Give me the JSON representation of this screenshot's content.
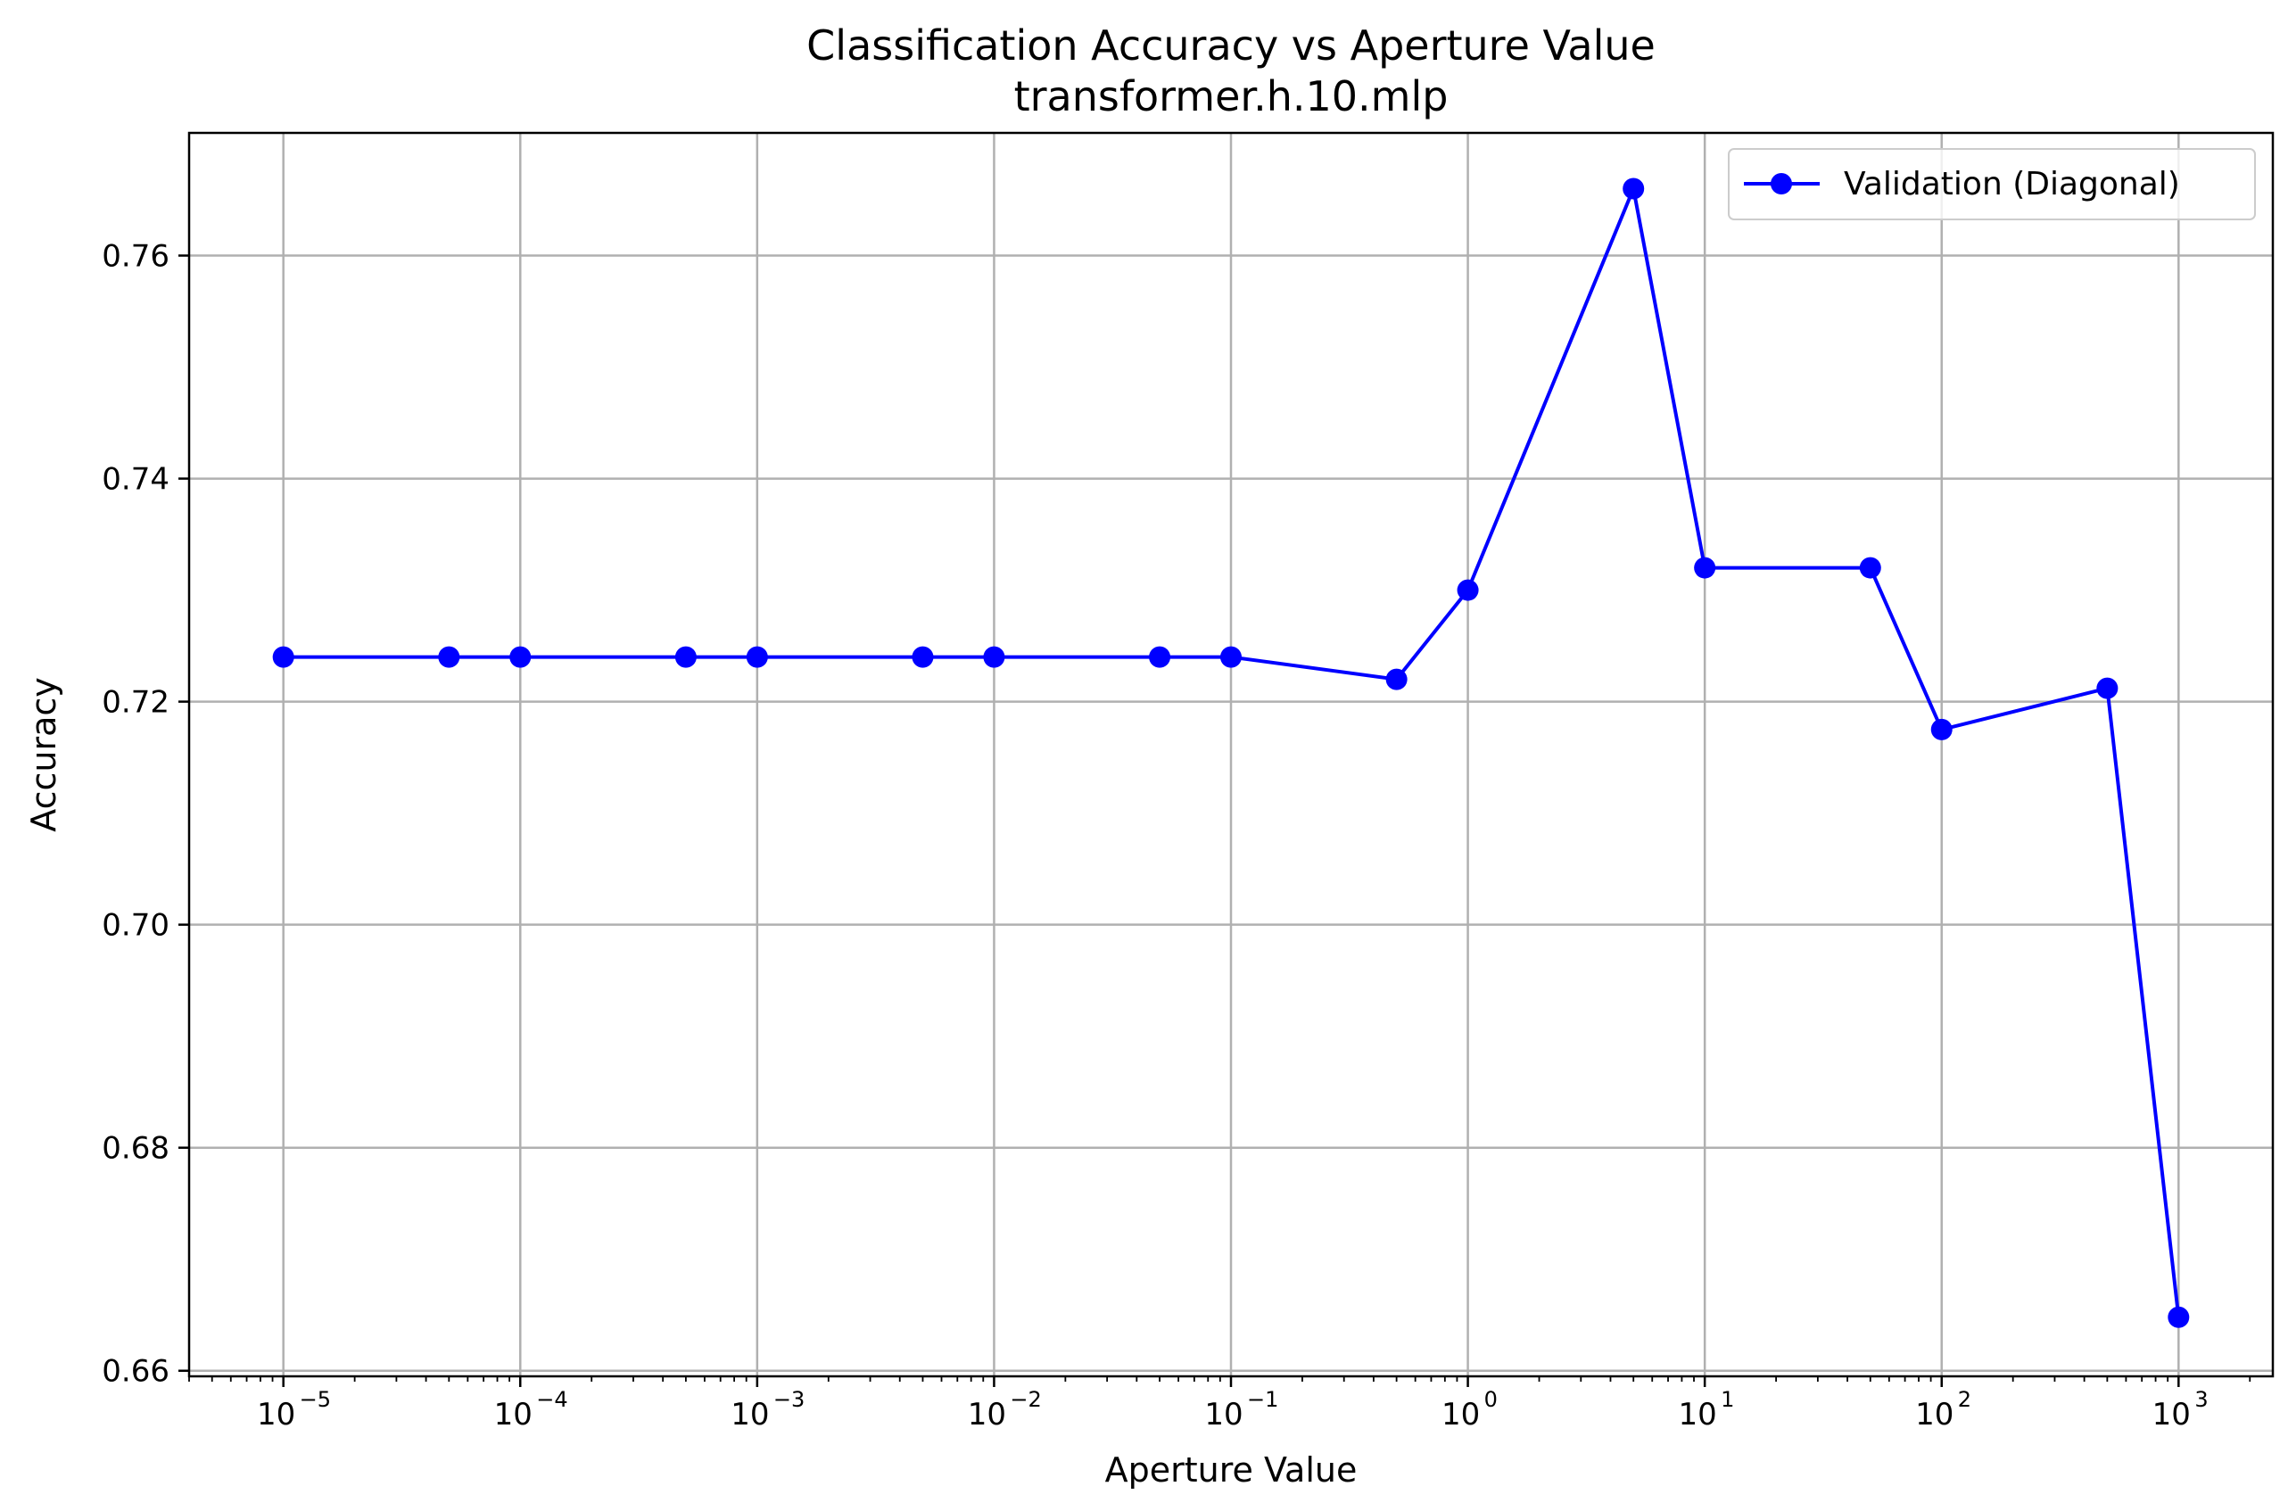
{
  "chart_data": {
    "type": "line",
    "title": "Classification Accuracy vs Aperture Value",
    "subtitle": "transformer.h.10.mlp",
    "xlabel": "Aperture Value",
    "ylabel": "Accuracy",
    "xscale": "log",
    "xlim": [
      4e-06,
      2500
    ],
    "ylim": [
      0.6595,
      0.771
    ],
    "grid": true,
    "legend_position": "top-right",
    "x_ticks": [
      {
        "value": 1e-05,
        "label": "10",
        "exp": "−5"
      },
      {
        "value": 0.0001,
        "label": "10",
        "exp": "−4"
      },
      {
        "value": 0.001,
        "label": "10",
        "exp": "−3"
      },
      {
        "value": 0.01,
        "label": "10",
        "exp": "−2"
      },
      {
        "value": 0.1,
        "label": "10",
        "exp": "−1"
      },
      {
        "value": 1,
        "label": "10",
        "exp": "0"
      },
      {
        "value": 10,
        "label": "10",
        "exp": "1"
      },
      {
        "value": 100,
        "label": "10",
        "exp": "2"
      },
      {
        "value": 1000,
        "label": "10",
        "exp": "3"
      }
    ],
    "y_ticks": [
      {
        "value": 0.66,
        "label": "0.66"
      },
      {
        "value": 0.68,
        "label": "0.68"
      },
      {
        "value": 0.7,
        "label": "0.70"
      },
      {
        "value": 0.72,
        "label": "0.72"
      },
      {
        "value": 0.74,
        "label": "0.74"
      },
      {
        "value": 0.76,
        "label": "0.76"
      }
    ],
    "series": [
      {
        "name": "Validation (Diagonal)",
        "color": "#0000ff",
        "marker": "circle",
        "x": [
          1e-05,
          5e-05,
          0.0001,
          0.0005,
          0.001,
          0.005,
          0.01,
          0.05,
          0.1,
          0.5,
          1,
          5,
          10,
          50,
          100,
          500,
          1000
        ],
        "y": [
          0.724,
          0.724,
          0.724,
          0.724,
          0.724,
          0.724,
          0.724,
          0.724,
          0.724,
          0.722,
          0.73,
          0.766,
          0.732,
          0.732,
          0.7175,
          0.7212,
          0.6648
        ]
      }
    ]
  }
}
